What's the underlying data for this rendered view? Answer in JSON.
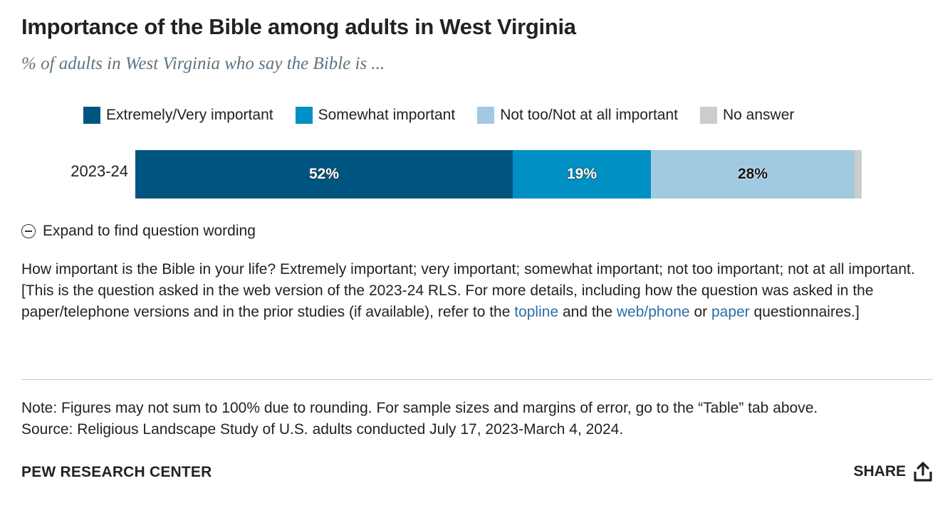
{
  "header": {
    "title": "Importance of the Bible among adults in West Virginia",
    "subtitle": "% of adults in West Virginia who say the Bible is ..."
  },
  "chart_data": {
    "type": "bar",
    "orientation": "horizontal-stacked",
    "title": "Importance of the Bible among adults in West Virginia",
    "subtitle": "% of adults in West Virginia who say the Bible is ...",
    "categories": [
      "2023-24"
    ],
    "series": [
      {
        "name": "Extremely/Very important",
        "values": [
          52
        ],
        "label": "52%",
        "color": "#005580",
        "label_style": "light"
      },
      {
        "name": "Somewhat important",
        "values": [
          19
        ],
        "label": "19%",
        "color": "#0090c4",
        "label_style": "light"
      },
      {
        "name": "Not too/Not at all important",
        "values": [
          28
        ],
        "label": "28%",
        "color": "#a1c9e2",
        "label_style": "dark"
      },
      {
        "name": "No answer",
        "values": [
          1
        ],
        "label": "",
        "color": "#cccccc",
        "label_style": "dark"
      }
    ],
    "xlim": [
      0,
      100
    ],
    "legend_position": "top",
    "grid": false
  },
  "expand": {
    "label": "Expand to find question wording",
    "icon": "minus-circle-icon"
  },
  "question": {
    "line1": "How important is the Bible in your life? Extremely important; very important; somewhat important; not too important; not at all important.",
    "line2_prefix": "[This is the question asked in the web version of the 2023-24 RLS. For more details, including how the question was asked in the paper/telephone versions and in the prior studies (if available), refer to the ",
    "link_topline": "topline",
    "mid1": " and the ",
    "link_webphone": "web/phone",
    "mid2": " or ",
    "link_paper": "paper",
    "suffix": " questionnaires.]"
  },
  "notes": {
    "note": "Note: Figures may not sum to 100% due to rounding. For sample sizes and margins of error, go to the “Table” tab above.",
    "source": "Source: Religious Landscape Study of U.S. adults conducted July 17, 2023-March 4, 2024."
  },
  "footer": {
    "org": "PEW RESEARCH CENTER",
    "share_label": "SHARE",
    "share_icon": "share-upload-icon"
  }
}
